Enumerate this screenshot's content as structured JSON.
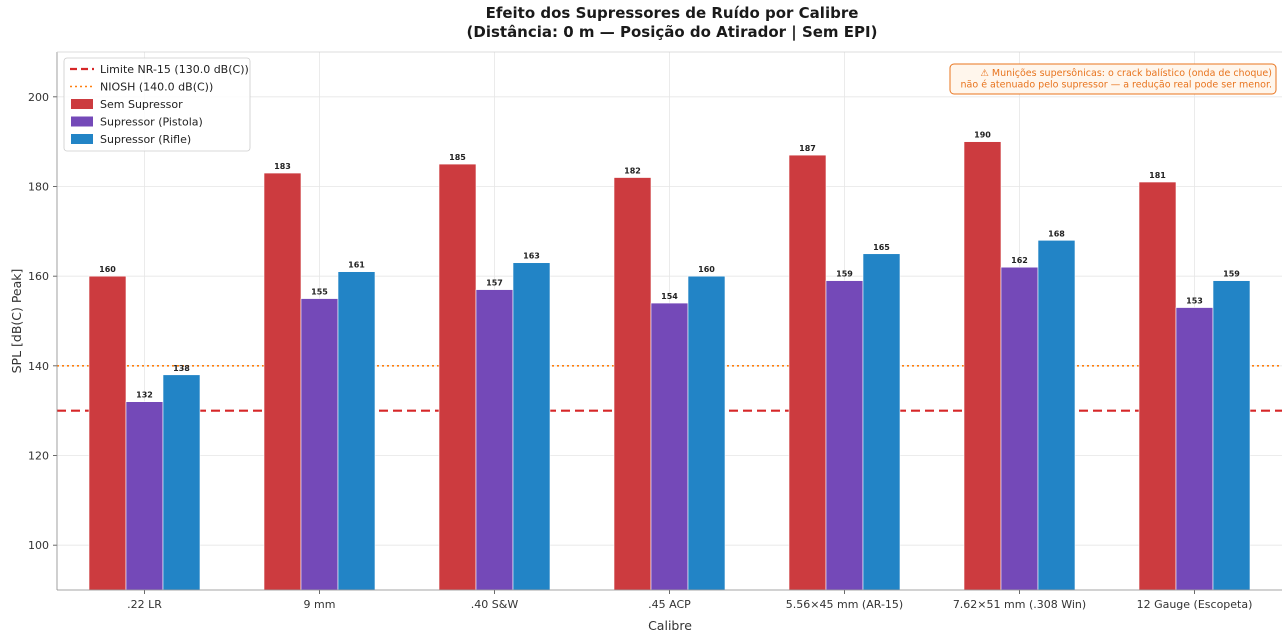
{
  "chart_data": {
    "type": "bar",
    "title": "Efeito dos Supressores de Ruído por Calibre",
    "subtitle": "(Distância: 0 m — Posição do Atirador | Sem EPI)",
    "xlabel": "Calibre",
    "ylabel": "SPL [dB(C) Peak]",
    "ylim": [
      90,
      210
    ],
    "yticks": [
      100,
      120,
      140,
      160,
      180,
      200
    ],
    "grid": true,
    "legend_position": "top-left",
    "categories": [
      ".22 LR",
      "9 mm",
      ".40 S&W",
      ".45 ACP",
      "5.56×45 mm (AR-15)",
      "7.62×51 mm (.308 Win)",
      "12 Gauge (Escopeta)"
    ],
    "series": [
      {
        "name": "Sem Supressor",
        "color": "#cc3b3f",
        "values": [
          160,
          183,
          185,
          182,
          187,
          190,
          181
        ]
      },
      {
        "name": "Supressor (Pistola)",
        "color": "#7449b8",
        "values": [
          132,
          155,
          157,
          154,
          159,
          162,
          153
        ]
      },
      {
        "name": "Supressor (Rifle)",
        "color": "#2284c6",
        "values": [
          138,
          161,
          163,
          160,
          165,
          168,
          159
        ]
      }
    ],
    "reference_lines": [
      {
        "name": "Limite NR-15 (130.0 dB(C))",
        "value": 130,
        "color": "#d62728",
        "style": "dashed"
      },
      {
        "name": "NIOSH (140.0 dB(C))",
        "value": 140,
        "color": "#ff7f0e",
        "style": "dotted"
      }
    ],
    "annotation": {
      "lines": [
        "⚠ Munições supersônicas: o crack balístico (onda de choque)",
        "não é atenuado pelo supressor — a redução real pode ser menor."
      ],
      "color": "#e8741e",
      "position": "top-right"
    }
  }
}
